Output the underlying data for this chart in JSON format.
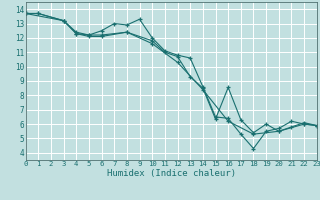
{
  "xlabel": "Humidex (Indice chaleur)",
  "xlim": [
    0,
    23
  ],
  "ylim": [
    3.5,
    14.5
  ],
  "xticks": [
    0,
    1,
    2,
    3,
    4,
    5,
    6,
    7,
    8,
    9,
    10,
    11,
    12,
    13,
    14,
    15,
    16,
    17,
    18,
    19,
    20,
    21,
    22,
    23
  ],
  "yticks": [
    4,
    5,
    6,
    7,
    8,
    9,
    10,
    11,
    12,
    13,
    14
  ],
  "bg_color": "#c2e0e0",
  "grid_color": "#ffffff",
  "line_color": "#1a7070",
  "lines": [
    {
      "x": [
        0,
        1,
        3,
        4,
        5,
        6,
        7,
        8,
        9,
        10,
        11,
        12,
        13,
        14,
        15,
        16,
        17,
        18,
        19,
        20,
        21,
        22,
        23
      ],
      "y": [
        13.7,
        13.7,
        13.2,
        12.4,
        12.2,
        12.5,
        13.0,
        12.9,
        13.3,
        12.0,
        11.1,
        10.8,
        10.6,
        8.6,
        6.5,
        6.4,
        5.3,
        4.3,
        5.5,
        5.7,
        6.2,
        6.0,
        5.9
      ]
    },
    {
      "x": [
        0,
        1,
        3,
        4,
        5,
        6,
        8,
        10,
        11,
        12,
        13,
        14,
        15,
        16,
        17,
        18,
        19,
        20,
        21,
        22,
        23
      ],
      "y": [
        13.7,
        13.7,
        13.2,
        12.3,
        12.2,
        12.2,
        12.4,
        11.8,
        11.0,
        10.7,
        9.3,
        8.5,
        6.35,
        8.55,
        6.3,
        5.4,
        6.0,
        5.5,
        5.8,
        6.1,
        5.9
      ]
    },
    {
      "x": [
        0,
        3,
        4,
        5,
        6,
        8,
        10,
        12,
        14,
        16,
        18,
        20,
        22,
        23
      ],
      "y": [
        13.7,
        13.2,
        12.3,
        12.1,
        12.1,
        12.4,
        11.6,
        10.3,
        8.4,
        6.2,
        5.3,
        5.5,
        6.0,
        5.9
      ]
    }
  ]
}
